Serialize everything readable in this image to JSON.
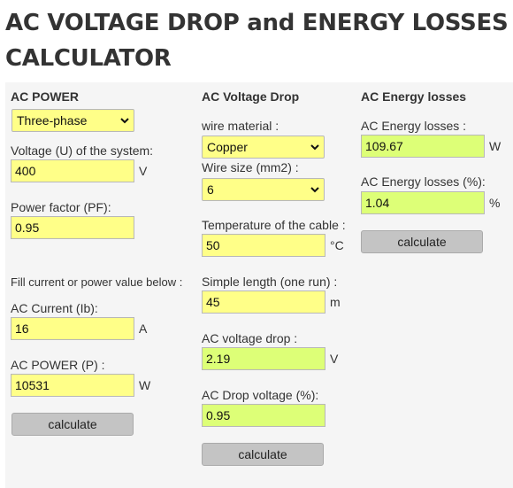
{
  "page": {
    "title": "AC VOLTAGE DROP and ENERGY LOSSES CALCULATOR"
  },
  "ac_power": {
    "heading": "AC POWER",
    "phase_select": "Three-phase",
    "voltage_label": "Voltage (U) of the system:",
    "voltage_value": "400",
    "voltage_unit": "V",
    "pf_label": "Power factor (PF):",
    "pf_value": "0.95",
    "fill_note": "Fill current or power value below :",
    "current_label": "AC Current (Ib):",
    "current_value": "16",
    "current_unit": "A",
    "power_label": "AC POWER (P) :",
    "power_value": "10531",
    "power_unit": "W",
    "calculate_label": "calculate"
  },
  "voltage_drop": {
    "heading": "AC Voltage Drop",
    "material_label": "wire material :",
    "material_select": "Copper",
    "size_label": "Wire size (mm2) :",
    "size_select": "6",
    "temp_label": "Temperature of the cable :",
    "temp_value": "50",
    "temp_unit": "°C",
    "length_label": "Simple length (one run) :",
    "length_value": "45",
    "length_unit": "m",
    "drop_label": "AC voltage drop :",
    "drop_value": "2.19",
    "drop_unit": "V",
    "drop_pct_label": "AC Drop voltage (%):",
    "drop_pct_value": "0.95",
    "calculate_label": "calculate"
  },
  "energy_losses": {
    "heading": "AC Energy losses",
    "losses_label": "AC Energy losses :",
    "losses_value": "109.67",
    "losses_unit": "W",
    "losses_pct_label": "AC Energy losses (%):",
    "losses_pct_value": "1.04",
    "losses_pct_unit": "%",
    "calculate_label": "calculate"
  },
  "colors": {
    "input_yellow": "#ffff88",
    "result_green": "#ddff77",
    "button_gray": "#c4c4c4",
    "panel_bg": "#f5f5f5"
  },
  "icons": {
    "select_arrow": "chevron-down-icon"
  }
}
